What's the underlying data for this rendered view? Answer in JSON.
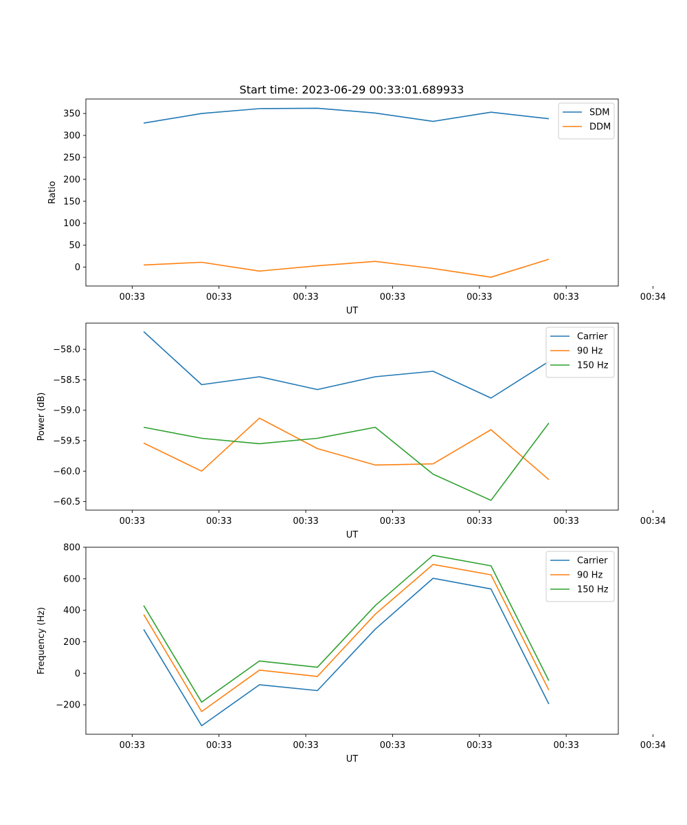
{
  "figure_title": "Start time: 2023-06-29 00:33:01.689933",
  "chart_data": [
    {
      "type": "line",
      "title": "Start time: 2023-06-29 00:33:01.689933",
      "xlabel": "UT",
      "ylabel": "Ratio",
      "x": [
        1,
        2,
        3,
        4,
        5,
        6,
        7,
        8
      ],
      "xlim": [
        0,
        9.2
      ],
      "ylim": [
        -43,
        383
      ],
      "xticks": [
        0.8,
        2.3,
        3.8,
        5.3,
        6.8,
        8.3,
        9.8
      ],
      "xtick_labels": [
        "00:33",
        "00:33",
        "00:33",
        "00:33",
        "00:33",
        "00:33",
        "00:34"
      ],
      "yticks": [
        0,
        50,
        100,
        150,
        200,
        250,
        300,
        350
      ],
      "ytick_labels": [
        "0",
        "50",
        "100",
        "150",
        "200",
        "250",
        "300",
        "350"
      ],
      "legend_position": "top-right",
      "series": [
        {
          "name": "SDM",
          "color": "#1f77b4",
          "values": [
            328,
            350,
            361,
            362,
            351,
            332,
            353,
            338
          ]
        },
        {
          "name": "DDM",
          "color": "#ff7f0e",
          "values": [
            5,
            11,
            -9,
            3,
            13,
            -3,
            -23,
            18
          ]
        }
      ]
    },
    {
      "type": "line",
      "title": "",
      "xlabel": "UT",
      "ylabel": "Power (dB)",
      "x": [
        1,
        2,
        3,
        4,
        5,
        6,
        7,
        8
      ],
      "xlim": [
        0,
        9.2
      ],
      "ylim": [
        -60.64,
        -57.57
      ],
      "xticks": [
        0.8,
        2.3,
        3.8,
        5.3,
        6.8,
        8.3,
        9.8
      ],
      "xtick_labels": [
        "00:33",
        "00:33",
        "00:33",
        "00:33",
        "00:33",
        "00:33",
        "00:34"
      ],
      "yticks": [
        -58.0,
        -58.5,
        -59.0,
        -59.5,
        -60.0,
        -60.5
      ],
      "ytick_labels": [
        "−58.0",
        "−58.5",
        "−59.0",
        "−59.5",
        "−60.0",
        "−60.5"
      ],
      "legend_position": "top-right",
      "series": [
        {
          "name": "Carrier",
          "color": "#1f77b4",
          "values": [
            -57.71,
            -58.58,
            -58.45,
            -58.66,
            -58.45,
            -58.36,
            -58.8,
            -58.2
          ]
        },
        {
          "name": "90 Hz",
          "color": "#ff7f0e",
          "values": [
            -59.54,
            -60.0,
            -59.13,
            -59.63,
            -59.9,
            -59.88,
            -59.32,
            -60.14
          ]
        },
        {
          "name": "150 Hz",
          "color": "#2ca02c",
          "values": [
            -59.28,
            -59.46,
            -59.55,
            -59.46,
            -59.28,
            -60.05,
            -60.48,
            -59.21
          ]
        }
      ]
    },
    {
      "type": "line",
      "title": "",
      "xlabel": "UT",
      "ylabel": "Frequency (Hz)",
      "x": [
        1,
        2,
        3,
        4,
        5,
        6,
        7,
        8
      ],
      "xlim": [
        0,
        9.2
      ],
      "ylim": [
        -387,
        800
      ],
      "xticks": [
        0.8,
        2.3,
        3.8,
        5.3,
        6.8,
        8.3,
        9.8
      ],
      "xtick_labels": [
        "00:33",
        "00:33",
        "00:33",
        "00:33",
        "00:33",
        "00:33",
        "00:34"
      ],
      "yticks": [
        -200,
        0,
        200,
        400,
        600,
        800
      ],
      "ytick_labels": [
        "−200",
        "0",
        "200",
        "400",
        "600",
        "800"
      ],
      "legend_position": "top-right",
      "series": [
        {
          "name": "Carrier",
          "color": "#1f77b4",
          "values": [
            278,
            -333,
            -73,
            -110,
            280,
            603,
            535,
            -195
          ]
        },
        {
          "name": "90 Hz",
          "color": "#ff7f0e",
          "values": [
            373,
            -243,
            20,
            -20,
            375,
            691,
            625,
            -107
          ]
        },
        {
          "name": "150 Hz",
          "color": "#2ca02c",
          "values": [
            430,
            -183,
            78,
            38,
            430,
            749,
            682,
            -47
          ]
        }
      ]
    }
  ]
}
